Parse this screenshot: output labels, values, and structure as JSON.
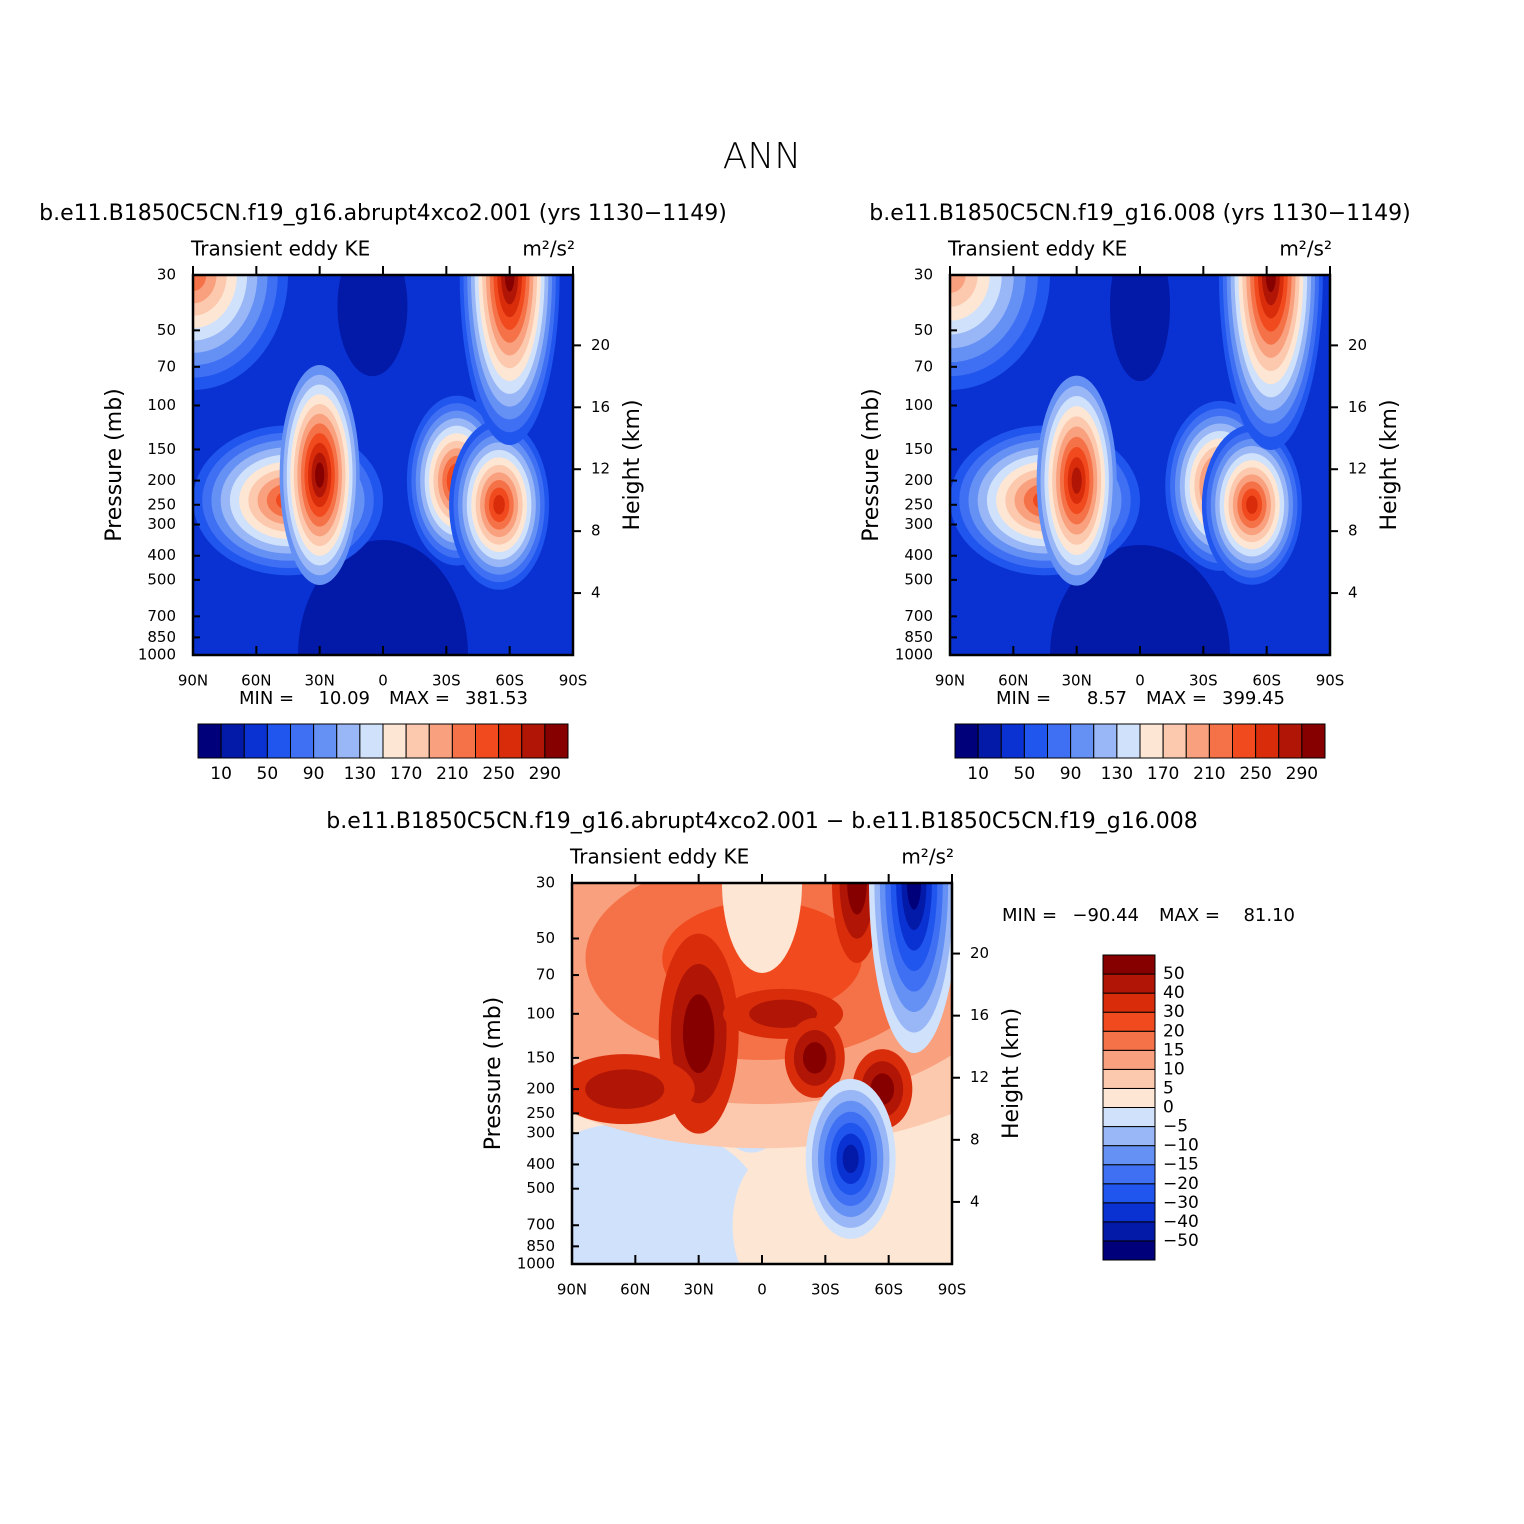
{
  "title": "ANN",
  "chart_data": [
    {
      "type": "contour",
      "title": "b.e11.B1850C5CN.f19_g16.abrupt4xco2.001 (yrs 1130−1149)",
      "left_string": "Transient eddy KE",
      "right_string": "m²/s²",
      "ylabel": "Pressure (mb)",
      "y2label": "Height (km)",
      "xlim": [
        90,
        -90
      ],
      "xticks": [
        {
          "value": 90,
          "label": "90N"
        },
        {
          "value": 60,
          "label": "60N"
        },
        {
          "value": 30,
          "label": "30N"
        },
        0,
        {
          "value": -30,
          "label": "30S"
        },
        {
          "value": -60,
          "label": "60S"
        },
        {
          "value": -90,
          "label": "90S"
        }
      ],
      "ylim": [
        1000,
        30
      ],
      "yscale": "log",
      "yticks": [
        30,
        50,
        70,
        100,
        150,
        200,
        250,
        300,
        400,
        500,
        700,
        850,
        1000
      ],
      "y2ticks": [
        4,
        8,
        12,
        16,
        20
      ],
      "stats": {
        "names": [
          "MIN =",
          "MAX ="
        ],
        "values": [
          10.09,
          381.53
        ]
      },
      "colorbar": {
        "orientation": "horizontal",
        "levels": [
          10,
          30,
          50,
          70,
          90,
          110,
          130,
          150,
          170,
          190,
          210,
          230,
          250,
          270,
          290
        ],
        "ticks": [
          10,
          50,
          90,
          130,
          170,
          210,
          250,
          290
        ],
        "colors": [
          "#00007a",
          "#0319a8",
          "#0a32d2",
          "#2055ee",
          "#3f6ff3",
          "#6590f4",
          "#99b6f6",
          "#cfe1fb",
          "#fde7d4",
          "#fcc9ae",
          "#f9a07e",
          "#f57248",
          "#f04a1e",
          "#d92c0b",
          "#b01506",
          "#870000"
        ]
      }
    },
    {
      "type": "contour",
      "title": "b.e11.B1850C5CN.f19_g16.008 (yrs 1130−1149)",
      "left_string": "Transient eddy KE",
      "right_string": "m²/s²",
      "ylabel": "Pressure (mb)",
      "y2label": "Height (km)",
      "xlim": [
        90,
        -90
      ],
      "xticks": [
        {
          "value": 90,
          "label": "90N"
        },
        {
          "value": 60,
          "label": "60N"
        },
        {
          "value": 30,
          "label": "30N"
        },
        0,
        {
          "value": -30,
          "label": "30S"
        },
        {
          "value": -60,
          "label": "60S"
        },
        {
          "value": -90,
          "label": "90S"
        }
      ],
      "ylim": [
        1000,
        30
      ],
      "yscale": "log",
      "yticks": [
        30,
        50,
        70,
        100,
        150,
        200,
        250,
        300,
        400,
        500,
        700,
        850,
        1000
      ],
      "y2ticks": [
        4,
        8,
        12,
        16,
        20
      ],
      "stats": {
        "names": [
          "MIN =",
          "MAX ="
        ],
        "values": [
          8.57,
          399.45
        ]
      },
      "colorbar": {
        "orientation": "horizontal",
        "levels": [
          10,
          30,
          50,
          70,
          90,
          110,
          130,
          150,
          170,
          190,
          210,
          230,
          250,
          270,
          290
        ],
        "ticks": [
          10,
          50,
          90,
          130,
          170,
          210,
          250,
          290
        ],
        "colors": [
          "#00007a",
          "#0319a8",
          "#0a32d2",
          "#2055ee",
          "#3f6ff3",
          "#6590f4",
          "#99b6f6",
          "#cfe1fb",
          "#fde7d4",
          "#fcc9ae",
          "#f9a07e",
          "#f57248",
          "#f04a1e",
          "#d92c0b",
          "#b01506",
          "#870000"
        ]
      }
    },
    {
      "type": "contour",
      "title": "b.e11.B1850C5CN.f19_g16.abrupt4xco2.001 − b.e11.B1850C5CN.f19_g16.008",
      "left_string": "Transient eddy KE",
      "right_string": "m²/s²",
      "ylabel": "Pressure (mb)",
      "y2label": "Height (km)",
      "xlim": [
        90,
        -90
      ],
      "xticks": [
        {
          "value": 90,
          "label": "90N"
        },
        {
          "value": 60,
          "label": "60N"
        },
        {
          "value": 30,
          "label": "30N"
        },
        0,
        {
          "value": -30,
          "label": "30S"
        },
        {
          "value": -60,
          "label": "60S"
        },
        {
          "value": -90,
          "label": "90S"
        }
      ],
      "ylim": [
        1000,
        30
      ],
      "yscale": "log",
      "yticks": [
        30,
        50,
        70,
        100,
        150,
        200,
        250,
        300,
        400,
        500,
        700,
        850,
        1000
      ],
      "y2ticks": [
        4,
        8,
        12,
        16,
        20
      ],
      "stats": {
        "names": [
          "MIN =",
          "MAX ="
        ],
        "values": [
          -90.44,
          81.1
        ],
        "value_labels": [
          "−90.44",
          "81.10"
        ]
      },
      "colorbar": {
        "orientation": "vertical",
        "levels": [
          -50,
          -40,
          -30,
          -20,
          -15,
          -10,
          -5,
          0,
          5,
          10,
          15,
          20,
          30,
          40,
          50
        ],
        "ticks": [
          {
            "value": -50,
            "label": "−50"
          },
          {
            "value": -40,
            "label": "−40"
          },
          {
            "value": -30,
            "label": "−30"
          },
          {
            "value": -20,
            "label": "−20"
          },
          {
            "value": -15,
            "label": "−15"
          },
          {
            "value": -10,
            "label": "−10"
          },
          {
            "value": -5,
            "label": "−5"
          },
          0,
          5,
          10,
          15,
          20,
          30,
          40,
          50
        ],
        "colors": [
          "#00007a",
          "#0319a8",
          "#0a32d2",
          "#2055ee",
          "#3f6ff3",
          "#6590f4",
          "#99b6f6",
          "#cfe1fb",
          "#fde7d4",
          "#fcc9ae",
          "#f9a07e",
          "#f57248",
          "#f04a1e",
          "#d92c0b",
          "#b01506",
          "#870000"
        ]
      }
    }
  ]
}
